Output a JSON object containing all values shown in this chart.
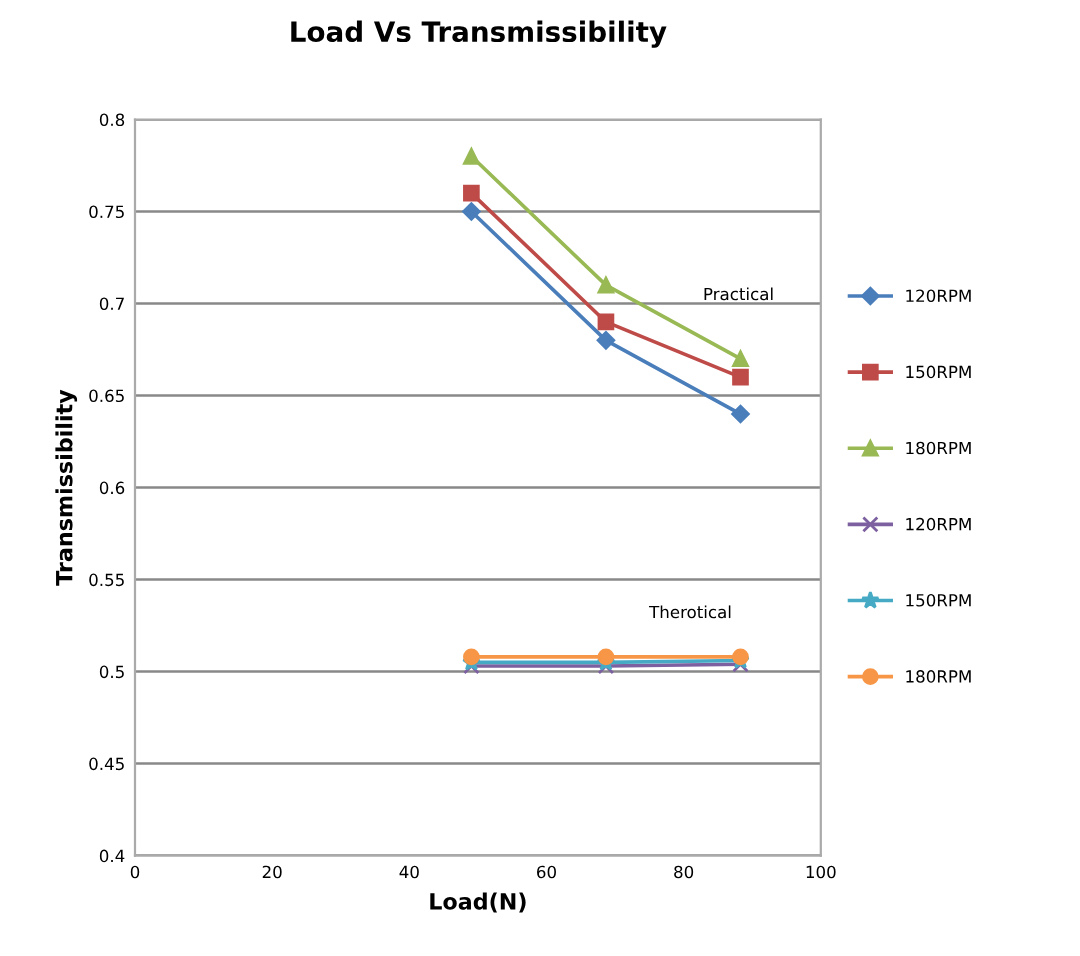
{
  "chart_data": {
    "type": "line",
    "title": "Load Vs Transmissibility",
    "xlabel": "Load(N)",
    "ylabel": "Transmissibility",
    "xlim": [
      0,
      100
    ],
    "xticks": [
      0,
      20,
      40,
      60,
      80,
      100
    ],
    "ylim": [
      0.4,
      0.8
    ],
    "yticks": [
      0.4,
      0.45,
      0.5,
      0.55,
      0.6,
      0.65,
      0.7,
      0.75,
      0.8
    ],
    "grid": "y",
    "legend": "right",
    "x": [
      49.05,
      68.67,
      88.29
    ],
    "series": [
      {
        "name": "120RPM",
        "color": "#4a7ebb",
        "marker": "diamond",
        "values": [
          0.75,
          0.68,
          0.64
        ]
      },
      {
        "name": "150RPM",
        "color": "#be4b48",
        "marker": "square",
        "values": [
          0.76,
          0.69,
          0.66
        ]
      },
      {
        "name": "180RPM",
        "color": "#98b954",
        "marker": "triangle",
        "values": [
          0.78,
          0.71,
          0.67
        ]
      },
      {
        "name": "120RPM",
        "color": "#7d60a0",
        "marker": "cross",
        "values": [
          0.503,
          0.503,
          0.504
        ]
      },
      {
        "name": "150RPM",
        "color": "#46aac5",
        "marker": "star",
        "values": [
          0.505,
          0.505,
          0.506
        ]
      },
      {
        "name": "180RPM",
        "color": "#f79646",
        "marker": "circle",
        "values": [
          0.508,
          0.508,
          0.508
        ]
      }
    ],
    "annotations": [
      "Practical",
      "Therotical"
    ]
  }
}
